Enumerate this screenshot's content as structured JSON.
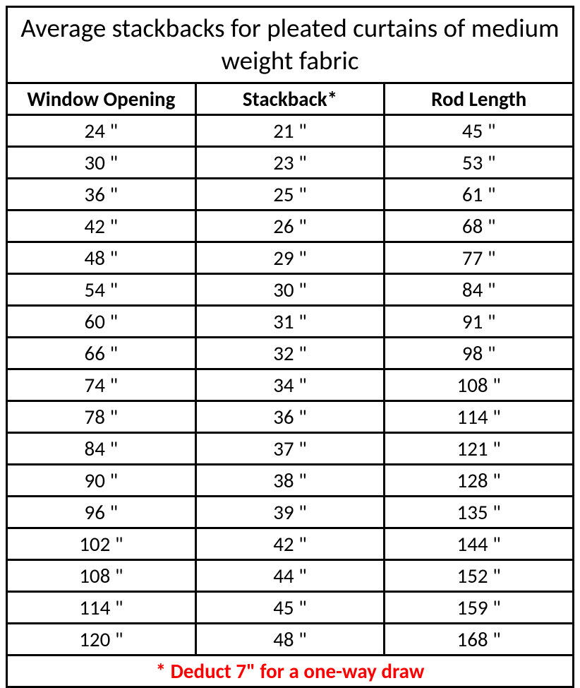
{
  "table": {
    "title": "Average stackbacks for pleated curtains of medium weight fabric",
    "columns": [
      "Window Opening",
      "Stackback*",
      "Rod Length"
    ],
    "rows": [
      [
        "24 \"",
        "21 \"",
        "45 \""
      ],
      [
        "30 \"",
        "23 \"",
        "53 \""
      ],
      [
        "36 \"",
        "25 \"",
        "61 \""
      ],
      [
        "42 \"",
        "26 \"",
        "68 \""
      ],
      [
        "48 \"",
        "29 \"",
        "77 \""
      ],
      [
        "54 \"",
        "30 \"",
        "84 \""
      ],
      [
        "60 \"",
        "31 \"",
        "91 \""
      ],
      [
        "66 \"",
        "32 \"",
        "98 \""
      ],
      [
        "74 \"",
        "34 \"",
        "108 \""
      ],
      [
        "78 \"",
        "36 \"",
        "114 \""
      ],
      [
        "84 \"",
        "37 \"",
        "121 \""
      ],
      [
        "90 \"",
        "38 \"",
        "128 \""
      ],
      [
        "96 \"",
        "39 \"",
        "135 \""
      ],
      [
        "102 \"",
        "42 \"",
        "144 \""
      ],
      [
        "108 \"",
        "44 \"",
        "152 \""
      ],
      [
        "114 \"",
        "45 \"",
        "159 \""
      ],
      [
        "120 \"",
        "48 \"",
        "168 \""
      ]
    ],
    "footnote": "* Deduct 7\" for a one-way draw",
    "colors": {
      "border": "#000000",
      "text": "#000000",
      "footnote": "#ff0000",
      "background": "#ffffff"
    },
    "styling": {
      "title_fontsize": 37,
      "header_fontsize": 29,
      "data_fontsize": 29,
      "footnote_fontsize": 29,
      "border_width": 3,
      "font_family": "Calibri"
    }
  }
}
